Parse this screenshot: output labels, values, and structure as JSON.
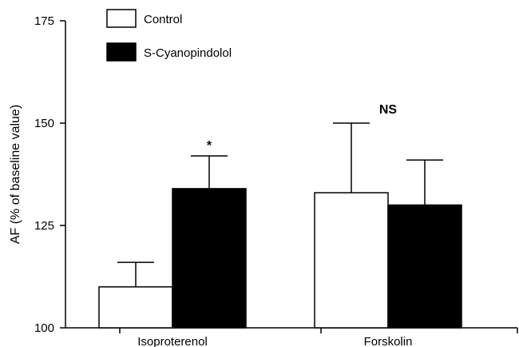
{
  "chart_data": {
    "type": "bar",
    "categories": [
      "Isoproterenol",
      "Forskolin"
    ],
    "series": [
      {
        "name": "Control",
        "values": [
          110,
          133
        ],
        "errors": [
          6,
          17
        ],
        "color": "#ffffff"
      },
      {
        "name": "S-Cyanopindolol",
        "values": [
          134,
          130
        ],
        "errors": [
          8,
          11
        ],
        "color": "#000000"
      }
    ],
    "ylabel": "AF (% of baseline value)",
    "xlabel": "",
    "title": "",
    "ylim": [
      100,
      175
    ],
    "yticks": [
      100,
      125,
      150,
      175
    ],
    "annotations": [
      {
        "category": "Isoproterenol",
        "text": "*"
      },
      {
        "category": "Forskolin",
        "text": "NS"
      }
    ],
    "legend": "top-left",
    "grid": false
  }
}
